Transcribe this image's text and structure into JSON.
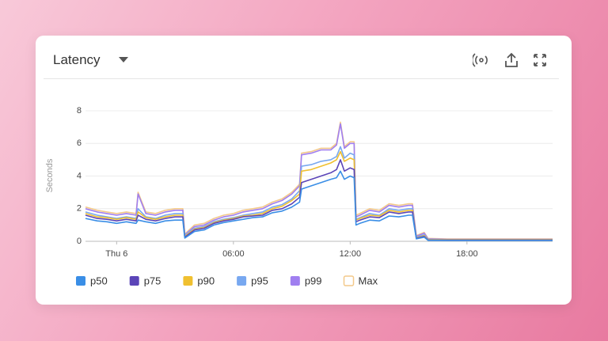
{
  "chart_data": {
    "type": "line",
    "title": "Latency",
    "ylabel": "Seconds",
    "x": [
      -1.6,
      -1,
      -0.5,
      0,
      0.5,
      1,
      1.1,
      1.5,
      2,
      2.5,
      3,
      3.4,
      3.5,
      4,
      4.5,
      5,
      5.5,
      6,
      6.5,
      7,
      7.5,
      8,
      8.5,
      9,
      9.4,
      9.5,
      10,
      10.5,
      11,
      11.3,
      11.5,
      11.7,
      12,
      12.2,
      12.3,
      12.5,
      13,
      13.5,
      14,
      14.5,
      15,
      15.2,
      15.4,
      15.8,
      16,
      17,
      18,
      19,
      20,
      21,
      22,
      22.4
    ],
    "xlim": [
      -1.6,
      22.4
    ],
    "xticks": [
      {
        "value": 0,
        "label": "Thu 6"
      },
      {
        "value": 6,
        "label": "06:00"
      },
      {
        "value": 12,
        "label": "12:00"
      },
      {
        "value": 18,
        "label": "18:00"
      }
    ],
    "ylim": [
      0,
      8
    ],
    "yticks": [
      0,
      2,
      4,
      6,
      8
    ],
    "grid": true,
    "series": [
      {
        "name": "p50",
        "color": "#3a8ee6",
        "values": [
          1.4,
          1.25,
          1.2,
          1.1,
          1.2,
          1.1,
          1.3,
          1.2,
          1.1,
          1.25,
          1.3,
          1.3,
          0.2,
          0.6,
          0.7,
          1.0,
          1.15,
          1.25,
          1.35,
          1.45,
          1.5,
          1.75,
          1.85,
          2.1,
          2.4,
          3.2,
          3.4,
          3.6,
          3.8,
          3.9,
          4.3,
          3.8,
          4.0,
          3.9,
          1.0,
          1.1,
          1.3,
          1.25,
          1.55,
          1.5,
          1.6,
          1.6,
          0.15,
          0.25,
          0.06,
          0.05,
          0.05,
          0.05,
          0.05,
          0.05,
          0.05,
          0.05
        ]
      },
      {
        "name": "p75",
        "color": "#5b45b8",
        "values": [
          1.6,
          1.4,
          1.35,
          1.25,
          1.35,
          1.25,
          1.6,
          1.35,
          1.25,
          1.4,
          1.5,
          1.5,
          0.25,
          0.7,
          0.8,
          1.1,
          1.25,
          1.35,
          1.5,
          1.55,
          1.6,
          1.9,
          2.0,
          2.3,
          2.7,
          3.6,
          3.8,
          4.0,
          4.2,
          4.4,
          5.0,
          4.3,
          4.5,
          4.4,
          1.2,
          1.3,
          1.5,
          1.45,
          1.8,
          1.7,
          1.8,
          1.8,
          0.18,
          0.3,
          0.08,
          0.07,
          0.07,
          0.07,
          0.07,
          0.07,
          0.07,
          0.07
        ]
      },
      {
        "name": "p90",
        "color": "#f0c030",
        "values": [
          1.7,
          1.5,
          1.45,
          1.35,
          1.45,
          1.35,
          1.8,
          1.45,
          1.35,
          1.5,
          1.6,
          1.6,
          0.3,
          0.75,
          0.85,
          1.15,
          1.3,
          1.4,
          1.55,
          1.6,
          1.7,
          2.0,
          2.15,
          2.5,
          2.9,
          4.3,
          4.4,
          4.6,
          4.8,
          5.0,
          5.5,
          4.9,
          5.1,
          5.0,
          1.3,
          1.4,
          1.6,
          1.55,
          1.9,
          1.8,
          1.9,
          1.9,
          0.2,
          0.35,
          0.1,
          0.09,
          0.09,
          0.09,
          0.09,
          0.09,
          0.09,
          0.09
        ]
      },
      {
        "name": "p95",
        "color": "#78a8f0",
        "values": [
          1.8,
          1.6,
          1.5,
          1.4,
          1.5,
          1.4,
          2.0,
          1.5,
          1.4,
          1.6,
          1.7,
          1.7,
          0.35,
          0.8,
          0.9,
          1.2,
          1.35,
          1.45,
          1.6,
          1.7,
          1.8,
          2.1,
          2.25,
          2.6,
          3.1,
          4.6,
          4.7,
          4.9,
          5.0,
          5.2,
          5.8,
          5.1,
          5.4,
          5.3,
          1.35,
          1.45,
          1.7,
          1.6,
          2.0,
          1.9,
          2.0,
          2.0,
          0.25,
          0.4,
          0.12,
          0.1,
          0.1,
          0.1,
          0.1,
          0.1,
          0.1,
          0.1
        ]
      },
      {
        "name": "p99",
        "color": "#a07ff0",
        "values": [
          2.0,
          1.8,
          1.7,
          1.6,
          1.7,
          1.6,
          2.9,
          1.7,
          1.6,
          1.8,
          1.9,
          1.9,
          0.4,
          0.9,
          1.0,
          1.3,
          1.5,
          1.6,
          1.8,
          1.9,
          2.0,
          2.3,
          2.5,
          2.9,
          3.4,
          5.3,
          5.4,
          5.6,
          5.6,
          5.9,
          7.2,
          5.7,
          6.0,
          6.0,
          1.5,
          1.6,
          1.9,
          1.8,
          2.2,
          2.1,
          2.2,
          2.2,
          0.3,
          0.5,
          0.15,
          0.12,
          0.12,
          0.12,
          0.12,
          0.12,
          0.12,
          0.12
        ]
      },
      {
        "name": "Max",
        "color": "#f3c98a",
        "marker": "outline",
        "values": [
          2.1,
          1.9,
          1.8,
          1.7,
          1.8,
          1.7,
          3.0,
          1.8,
          1.7,
          1.9,
          2.0,
          2.0,
          0.45,
          1.0,
          1.1,
          1.4,
          1.6,
          1.7,
          1.9,
          2.0,
          2.1,
          2.4,
          2.6,
          3.0,
          3.5,
          5.4,
          5.5,
          5.7,
          5.7,
          6.0,
          7.3,
          5.8,
          6.1,
          6.1,
          1.6,
          1.7,
          2.0,
          1.9,
          2.3,
          2.2,
          2.3,
          2.3,
          0.35,
          0.55,
          0.18,
          0.14,
          0.14,
          0.14,
          0.14,
          0.14,
          0.14,
          0.14
        ]
      }
    ]
  }
}
